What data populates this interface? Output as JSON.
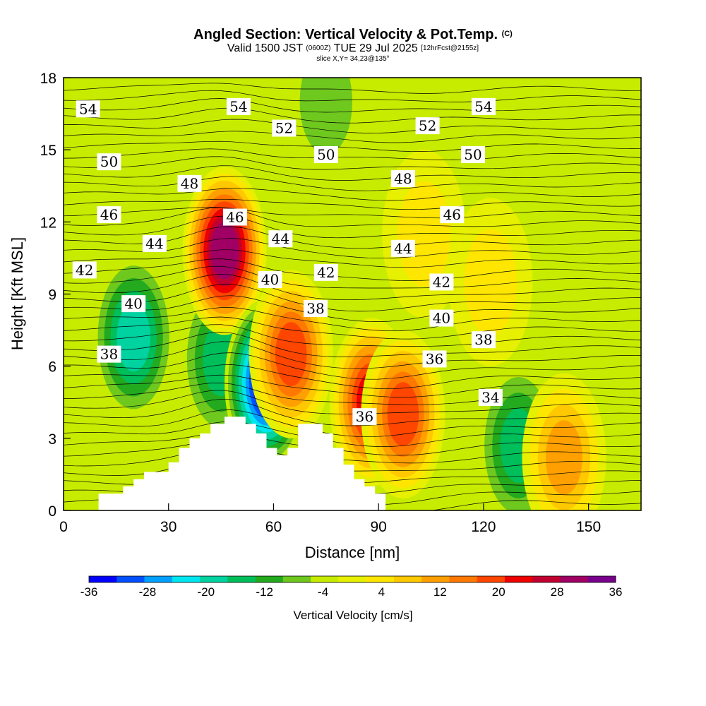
{
  "header": {
    "title": "Angled Section: Vertical Velocity & Pot.Temp.",
    "copyright": "(C)",
    "valid_prefix": "Valid 1500 JST",
    "utc_time": "(0600Z)",
    "valid_date": "TUE 29 Jul 2025",
    "forecast": "[12hrFcst@2155z]",
    "slice": "slice X,Y= 34,23@135°"
  },
  "chart_data": {
    "type": "heatmap",
    "title": "Angled Section: Vertical Velocity & Pot.Temp.",
    "xlabel": "Distance [nm]",
    "ylabel": "Height [Kft MSL]",
    "xlim": [
      0,
      165
    ],
    "ylim": [
      0,
      18
    ],
    "x_ticks": [
      0,
      30,
      60,
      90,
      120,
      150
    ],
    "y_ticks": [
      0,
      3,
      6,
      9,
      12,
      15,
      18
    ],
    "colorbar": {
      "label": "Vertical Velocity [cm/s]",
      "tick_values": [
        -36,
        -28,
        -20,
        -12,
        -4,
        4,
        12,
        20,
        28,
        36
      ],
      "levels": [
        -36,
        -32,
        -28,
        -24,
        -20,
        -16,
        -12,
        -8,
        -4,
        0,
        4,
        8,
        12,
        16,
        20,
        24,
        28,
        32,
        36
      ],
      "colors": [
        "#0000ff",
        "#0050ff",
        "#00a0ff",
        "#00e6f0",
        "#00d2a0",
        "#00be5a",
        "#23aa1e",
        "#6ec81e",
        "#c8ec00",
        "#e6f000",
        "#ffe600",
        "#ffc800",
        "#ffa000",
        "#ff7800",
        "#ff4600",
        "#ee0000",
        "#c00030",
        "#a00064",
        "#78008c"
      ]
    },
    "vertical_velocity_features": [
      {
        "x": 20,
        "y": 7.2,
        "value": -20
      },
      {
        "x": 45,
        "y": 6.3,
        "value": -16
      },
      {
        "x": 46,
        "y": 10.8,
        "value": 36
      },
      {
        "x": 58,
        "y": 5.3,
        "value": -36
      },
      {
        "x": 65,
        "y": 6.5,
        "value": 24
      },
      {
        "x": 88,
        "y": 4.5,
        "value": 28
      },
      {
        "x": 97,
        "y": 4.0,
        "value": 24
      },
      {
        "x": 130,
        "y": 2.7,
        "value": -16
      },
      {
        "x": 143,
        "y": 2.2,
        "value": 16
      },
      {
        "x": 103,
        "y": 11.5,
        "value": 8
      },
      {
        "x": 122,
        "y": 9.5,
        "value": 8
      },
      {
        "x": 75,
        "y": 17,
        "value": -8
      }
    ],
    "potential_temperature_labels": [
      {
        "x": 7,
        "y": 16.7,
        "text": "54"
      },
      {
        "x": 50,
        "y": 16.8,
        "text": "54"
      },
      {
        "x": 120,
        "y": 16.8,
        "text": "54"
      },
      {
        "x": 63,
        "y": 15.9,
        "text": "52"
      },
      {
        "x": 104,
        "y": 16.0,
        "text": "52"
      },
      {
        "x": 13,
        "y": 14.5,
        "text": "50"
      },
      {
        "x": 75,
        "y": 14.8,
        "text": "50"
      },
      {
        "x": 117,
        "y": 14.8,
        "text": "50"
      },
      {
        "x": 36,
        "y": 13.6,
        "text": "48"
      },
      {
        "x": 97,
        "y": 13.8,
        "text": "48"
      },
      {
        "x": 13,
        "y": 12.3,
        "text": "46"
      },
      {
        "x": 49,
        "y": 12.2,
        "text": "46"
      },
      {
        "x": 111,
        "y": 12.3,
        "text": "46"
      },
      {
        "x": 26,
        "y": 11.1,
        "text": "44"
      },
      {
        "x": 62,
        "y": 11.3,
        "text": "44"
      },
      {
        "x": 97,
        "y": 10.9,
        "text": "44"
      },
      {
        "x": 6,
        "y": 10.0,
        "text": "42"
      },
      {
        "x": 75,
        "y": 9.9,
        "text": "42"
      },
      {
        "x": 108,
        "y": 9.5,
        "text": "42"
      },
      {
        "x": 20,
        "y": 8.6,
        "text": "40"
      },
      {
        "x": 59,
        "y": 9.6,
        "text": "40"
      },
      {
        "x": 108,
        "y": 8.0,
        "text": "40"
      },
      {
        "x": 13,
        "y": 6.5,
        "text": "38"
      },
      {
        "x": 72,
        "y": 8.4,
        "text": "38"
      },
      {
        "x": 120,
        "y": 7.1,
        "text": "38"
      },
      {
        "x": 106,
        "y": 6.3,
        "text": "36"
      },
      {
        "x": 86,
        "y": 3.9,
        "text": "36"
      },
      {
        "x": 122,
        "y": 4.7,
        "text": "34"
      }
    ],
    "terrain_profile": [
      [
        0,
        0
      ],
      [
        10,
        0
      ],
      [
        10,
        0.7
      ],
      [
        17,
        0.7
      ],
      [
        17,
        1
      ],
      [
        20,
        1
      ],
      [
        20,
        1.3
      ],
      [
        23,
        1.3
      ],
      [
        23,
        1.6
      ],
      [
        30,
        1.6
      ],
      [
        30,
        2
      ],
      [
        33,
        2
      ],
      [
        33,
        2.6
      ],
      [
        36,
        2.6
      ],
      [
        36,
        3
      ],
      [
        39,
        3
      ],
      [
        39,
        3.2
      ],
      [
        42,
        3.2
      ],
      [
        42,
        3.6
      ],
      [
        46,
        3.6
      ],
      [
        46,
        3.9
      ],
      [
        52,
        3.9
      ],
      [
        52,
        3.6
      ],
      [
        55,
        3.6
      ],
      [
        55,
        3.2
      ],
      [
        58,
        3.2
      ],
      [
        58,
        2.6
      ],
      [
        61,
        2.6
      ],
      [
        61,
        2.3
      ],
      [
        64,
        2.3
      ],
      [
        64,
        2.6
      ],
      [
        67,
        2.6
      ],
      [
        67,
        3.6
      ],
      [
        74,
        3.6
      ],
      [
        74,
        3.2
      ],
      [
        77,
        3.2
      ],
      [
        77,
        2.6
      ],
      [
        80,
        2.6
      ],
      [
        80,
        1.9
      ],
      [
        83,
        1.9
      ],
      [
        83,
        1.3
      ],
      [
        86,
        1.3
      ],
      [
        86,
        1
      ],
      [
        89,
        1
      ],
      [
        89,
        0.7
      ],
      [
        92,
        0.7
      ],
      [
        92,
        0
      ],
      [
        165,
        0
      ]
    ]
  }
}
